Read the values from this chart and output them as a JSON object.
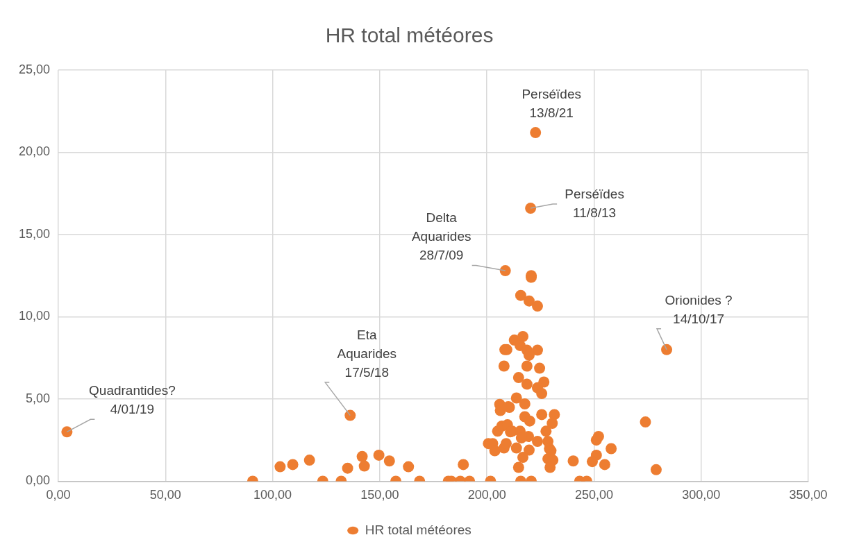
{
  "chart_data": {
    "type": "scatter",
    "title": "HR total météores",
    "series": [
      {
        "name": "HR total météores",
        "color": "#ed7d31",
        "x": [
          4,
          90.7,
          103.5,
          109.4,
          117.2,
          123.4,
          132,
          135,
          136.2,
          141.8,
          142.8,
          149.6,
          154.5,
          157.5,
          163.4,
          168.6,
          182,
          183.4,
          187.6,
          189,
          191.9,
          201.7,
          222.7,
          220.4,
          220.7,
          220.7,
          215.8,
          219.7,
          223.6,
          283.9,
          212.8,
          216.8,
          215.5,
          218.7,
          223.6,
          219.7,
          218.7,
          224.6,
          214.8,
          218.7,
          226.6,
          223.6,
          225.6,
          213.8,
          217.7,
          210.5,
          225.6,
          231.5,
          217.7,
          220,
          230.5,
          274,
          227.6,
          215.5,
          211.8,
          219.4,
          216.1,
          223.6,
          228.5,
          229.2,
          229.9,
          213.8,
          219.7,
          216.8,
          228.5,
          230.8,
          214.8,
          229.5,
          215.8,
          220.7,
          240.3,
          252.1,
          251.1,
          258,
          251.1,
          249.2,
          255,
          243.3,
          246.6,
          279,
          200.7,
          202.7,
          203.7,
          205,
          206,
          206.3,
          207,
          208,
          208.4,
          209.3,
          208,
          209,
          209.6,
          210,
          211,
          208.6
        ],
        "values": [
          3.0,
          0,
          0.88,
          1.01,
          1.28,
          0,
          0,
          0.79,
          4.0,
          1.5,
          0.92,
          1.58,
          1.23,
          0,
          0.88,
          0,
          0,
          0,
          0,
          1.01,
          0,
          0,
          21.2,
          16.6,
          12.5,
          12.4,
          11.3,
          10.96,
          10.65,
          8.0,
          8.58,
          8.8,
          8.25,
          7.97,
          7.97,
          7.66,
          7.0,
          6.87,
          6.3,
          5.9,
          6.03,
          5.68,
          5.33,
          5.06,
          4.7,
          4.49,
          4.05,
          4.05,
          3.92,
          3.66,
          3.52,
          3.6,
          3.04,
          3.04,
          3.04,
          2.72,
          2.63,
          2.42,
          2.42,
          1.98,
          1.85,
          2.02,
          1.89,
          1.45,
          1.36,
          1.28,
          0.84,
          0.84,
          0,
          0,
          1.23,
          2.72,
          2.5,
          1.98,
          1.58,
          1.19,
          1.01,
          0,
          0,
          0.7,
          2.29,
          2.29,
          1.85,
          3.04,
          4.67,
          4.3,
          3.35,
          2.02,
          8.0,
          8.0,
          7.0,
          2.29,
          3.43,
          4.53,
          3.0,
          12.8
        ]
      }
    ],
    "xlim": [
      0,
      350
    ],
    "xticks": [
      {
        "value": 0,
        "label": "0,00"
      },
      {
        "value": 50,
        "label": "50,00"
      },
      {
        "value": 100,
        "label": "100,00"
      },
      {
        "value": 150,
        "label": "150,00"
      },
      {
        "value": 200,
        "label": "200,00"
      },
      {
        "value": 250,
        "label": "250,00"
      },
      {
        "value": 300,
        "label": "300,00"
      },
      {
        "value": 350,
        "label": "350,00"
      }
    ],
    "ylim": [
      0,
      25
    ],
    "yticks": [
      {
        "value": 0,
        "label": "0,00"
      },
      {
        "value": 5,
        "label": "5,00"
      },
      {
        "value": 10,
        "label": "10,00"
      },
      {
        "value": 15,
        "label": "15,00"
      },
      {
        "value": 20,
        "label": "20,00"
      },
      {
        "value": 25,
        "label": "25,00"
      }
    ],
    "grid": true,
    "legend": "bottom",
    "marker": "circle",
    "annotations": [
      {
        "text": "Quadrantides?\n4/01/19",
        "x": 4,
        "y": 3.0
      },
      {
        "text": "Eta\nAquarides\n17/5/18",
        "x": 136.2,
        "y": 4.0
      },
      {
        "text": "Delta\nAquarides\n28/7/09",
        "x": 208.6,
        "y": 12.8
      },
      {
        "text": "Perséïdes\n13/8/21",
        "x": 222.7,
        "y": 21.2
      },
      {
        "text": "Perséïdes\n11/8/13",
        "x": 220.4,
        "y": 16.6
      },
      {
        "text": "Orionides ?\n14/10/17",
        "x": 283.9,
        "y": 8.0
      }
    ]
  }
}
